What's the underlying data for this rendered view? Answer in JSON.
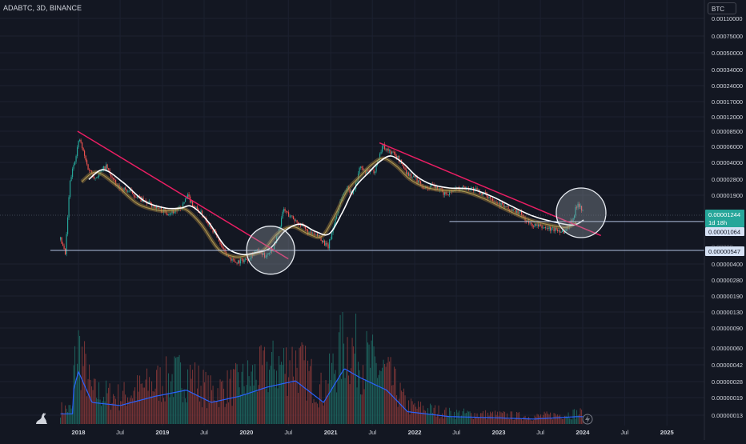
{
  "header": {
    "symbol": "ADABTC, 3D, BINANCE"
  },
  "scale_button": "BTC",
  "colors": {
    "background": "#131722",
    "trendline": "#e91e63",
    "moving_average": "#ffffff",
    "candle_up": "#26a69a",
    "candle_down": "#ef5350",
    "volume_ma": "#2962ff",
    "level_line": "#b2c1e0",
    "circle_fill": "#9aa3ad"
  },
  "price_labels": {
    "current": {
      "value": "0.00001244",
      "countdown": "1d 18h"
    },
    "level_upper": "0.00001064",
    "level_lower": "0.00000547",
    "hidden_partial": "0.00000"
  },
  "chart_data": {
    "type": "candlestick",
    "y_scale": "log",
    "y_ticks": [
      "0.00110000",
      "0.00075000",
      "0.00050000",
      "0.00034000",
      "0.00024000",
      "0.00017000",
      "0.00012000",
      "0.00008500",
      "0.00006000",
      "0.00004000",
      "0.00002800",
      "0.00001900",
      "0.00000400",
      "0.00000280",
      "0.00000190",
      "0.00000130",
      "0.00000090",
      "0.00000060",
      "0.00000042",
      "0.00000028",
      "0.00000019",
      "0.00000013"
    ],
    "x_ticks": [
      "2018",
      "Jul",
      "2019",
      "Jul",
      "2020",
      "Jul",
      "2021",
      "Jul",
      "2022",
      "Jul",
      "2023",
      "Jul",
      "2024",
      "Jul",
      "2025"
    ],
    "price_series": [
      {
        "date": "2017-10-15",
        "close": 7e-06
      },
      {
        "date": "2017-11-05",
        "close": 5e-06
      },
      {
        "date": "2017-11-25",
        "close": 2.6e-05
      },
      {
        "date": "2017-12-10",
        "close": 3.8e-05
      },
      {
        "date": "2018-01-05",
        "close": 7.2e-05
      },
      {
        "date": "2018-02-10",
        "close": 3.7e-05
      },
      {
        "date": "2018-03-15",
        "close": 2.9e-05
      },
      {
        "date": "2018-05-01",
        "close": 3.8e-05
      },
      {
        "date": "2018-06-15",
        "close": 2.4e-05
      },
      {
        "date": "2018-08-15",
        "close": 2.1e-05
      },
      {
        "date": "2018-10-10",
        "close": 1.7e-05
      },
      {
        "date": "2018-12-01",
        "close": 1.5e-05
      },
      {
        "date": "2019-01-20",
        "close": 1.3e-05
      },
      {
        "date": "2019-03-20",
        "close": 1.4e-05
      },
      {
        "date": "2019-04-20",
        "close": 1.9e-05
      },
      {
        "date": "2019-05-20",
        "close": 1.5e-05
      },
      {
        "date": "2019-07-01",
        "close": 1.2e-05
      },
      {
        "date": "2019-08-20",
        "close": 8e-06
      },
      {
        "date": "2019-10-01",
        "close": 5e-06
      },
      {
        "date": "2019-11-15",
        "close": 4.2e-06
      },
      {
        "date": "2020-01-05",
        "close": 4.5e-06
      },
      {
        "date": "2020-02-10",
        "close": 5.5e-06
      },
      {
        "date": "2020-03-20",
        "close": 4.8e-06
      },
      {
        "date": "2020-04-25",
        "close": 5.8e-06
      },
      {
        "date": "2020-05-20",
        "close": 8.5e-06
      },
      {
        "date": "2020-06-10",
        "close": 1.4e-05
      },
      {
        "date": "2020-07-10",
        "close": 1.2e-05
      },
      {
        "date": "2020-08-20",
        "close": 1e-05
      },
      {
        "date": "2020-10-01",
        "close": 8e-06
      },
      {
        "date": "2020-11-15",
        "close": 7.5e-06
      },
      {
        "date": "2020-12-20",
        "close": 5.8e-06
      },
      {
        "date": "2021-01-20",
        "close": 1.1e-05
      },
      {
        "date": "2021-02-15",
        "close": 1.8e-05
      },
      {
        "date": "2021-03-10",
        "close": 2.3e-05
      },
      {
        "date": "2021-04-10",
        "close": 2.1e-05
      },
      {
        "date": "2021-05-10",
        "close": 3.8e-05
      },
      {
        "date": "2021-05-25",
        "close": 3.3e-05
      },
      {
        "date": "2021-07-10",
        "close": 3.4e-05
      },
      {
        "date": "2021-08-15",
        "close": 6.2e-05
      },
      {
        "date": "2021-09-01",
        "close": 5.6e-05
      },
      {
        "date": "2021-10-15",
        "close": 4.8e-05
      },
      {
        "date": "2021-12-01",
        "close": 3.2e-05
      },
      {
        "date": "2022-01-01",
        "close": 2.9e-05
      },
      {
        "date": "2022-02-15",
        "close": 2.3e-05
      },
      {
        "date": "2022-03-20",
        "close": 2.4e-05
      },
      {
        "date": "2022-05-15",
        "close": 2e-05
      },
      {
        "date": "2022-07-01",
        "close": 2.3e-05
      },
      {
        "date": "2022-09-01",
        "close": 2.3e-05
      },
      {
        "date": "2022-11-01",
        "close": 2e-05
      },
      {
        "date": "2022-12-20",
        "close": 1.7e-05
      },
      {
        "date": "2023-02-15",
        "close": 1.4e-05
      },
      {
        "date": "2023-04-01",
        "close": 1.3e-05
      },
      {
        "date": "2023-05-15",
        "close": 1e-05
      },
      {
        "date": "2023-06-20",
        "close": 9.5e-06
      },
      {
        "date": "2023-08-15",
        "close": 9e-06
      },
      {
        "date": "2023-10-15",
        "close": 8.5e-06
      },
      {
        "date": "2023-11-20",
        "close": 1.15e-05
      },
      {
        "date": "2023-12-10",
        "close": 1.65e-05
      },
      {
        "date": "2023-12-25",
        "close": 1.5e-05
      },
      {
        "date": "2024-01-05",
        "close": 1.244e-05
      }
    ],
    "moving_average": [
      {
        "date": "2018-02-15",
        "value": 2.8e-05
      },
      {
        "date": "2018-04-20",
        "value": 3.5e-05
      },
      {
        "date": "2018-07-15",
        "value": 2.6e-05
      },
      {
        "date": "2018-10-15",
        "value": 1.7e-05
      },
      {
        "date": "2019-01-15",
        "value": 1.45e-05
      },
      {
        "date": "2019-03-20",
        "value": 1.45e-05
      },
      {
        "date": "2019-05-10",
        "value": 1.5e-05
      },
      {
        "date": "2019-07-20",
        "value": 1.05e-05
      },
      {
        "date": "2019-10-01",
        "value": 6e-06
      },
      {
        "date": "2019-12-10",
        "value": 5e-06
      },
      {
        "date": "2020-02-10",
        "value": 5.2e-06
      },
      {
        "date": "2020-04-15",
        "value": 5.8e-06
      },
      {
        "date": "2020-06-15",
        "value": 8.5e-06
      },
      {
        "date": "2020-08-20",
        "value": 1e-05
      },
      {
        "date": "2020-10-25",
        "value": 8.5e-06
      },
      {
        "date": "2020-12-25",
        "value": 8e-06
      },
      {
        "date": "2021-02-20",
        "value": 1.3e-05
      },
      {
        "date": "2021-04-15",
        "value": 2.3e-05
      },
      {
        "date": "2021-06-10",
        "value": 3.2e-05
      },
      {
        "date": "2021-08-01",
        "value": 4.2e-05
      },
      {
        "date": "2021-09-20",
        "value": 4.8e-05
      },
      {
        "date": "2021-11-15",
        "value": 4e-05
      },
      {
        "date": "2022-01-10",
        "value": 3e-05
      },
      {
        "date": "2022-03-15",
        "value": 2.5e-05
      },
      {
        "date": "2022-06-01",
        "value": 2.3e-05
      },
      {
        "date": "2022-09-01",
        "value": 2.25e-05
      },
      {
        "date": "2022-12-01",
        "value": 1.9e-05
      },
      {
        "date": "2023-03-01",
        "value": 1.5e-05
      },
      {
        "date": "2023-06-01",
        "value": 1.2e-05
      },
      {
        "date": "2023-09-01",
        "value": 1.05e-05
      },
      {
        "date": "2023-11-20",
        "value": 9.8e-06
      },
      {
        "date": "2024-01-05",
        "value": 1.1e-05
      }
    ],
    "trendlines": [
      {
        "from": {
          "date": "2017-12-28",
          "price": 8.5e-05
        },
        "to": {
          "date": "2020-07-01",
          "price": 4.5e-06
        }
      },
      {
        "from": {
          "date": "2021-08-01",
          "price": 6.5e-05
        },
        "to": {
          "date": "2024-03-20",
          "price": 7.7e-06
        }
      }
    ],
    "horizontal_levels": [
      {
        "price": 1.064e-05,
        "from_date": "2022-06-01"
      },
      {
        "price": 5.47e-06,
        "from_date": "2017-09-01"
      }
    ],
    "highlight_circles": [
      {
        "date": "2020-04-15",
        "price": 5.5e-06
      },
      {
        "date": "2023-12-25",
        "price": 1.3e-05
      }
    ],
    "volume": {
      "series": [
        {
          "date": "2017-12-10",
          "value": 0.55
        },
        {
          "date": "2018-01-01",
          "value": 0.85
        },
        {
          "date": "2018-03-01",
          "value": 0.35
        },
        {
          "date": "2018-07-01",
          "value": 0.3
        },
        {
          "date": "2018-12-01",
          "value": 0.45
        },
        {
          "date": "2019-04-15",
          "value": 0.55
        },
        {
          "date": "2019-08-01",
          "value": 0.35
        },
        {
          "date": "2019-12-01",
          "value": 0.45
        },
        {
          "date": "2020-04-01",
          "value": 0.6
        },
        {
          "date": "2020-08-01",
          "value": 0.7
        },
        {
          "date": "2020-12-01",
          "value": 0.35
        },
        {
          "date": "2021-03-01",
          "value": 0.9
        },
        {
          "date": "2021-05-10",
          "value": 0.75
        },
        {
          "date": "2021-09-01",
          "value": 0.55
        },
        {
          "date": "2021-12-01",
          "value": 0.2
        },
        {
          "date": "2022-06-01",
          "value": 0.12
        },
        {
          "date": "2023-01-01",
          "value": 0.1
        },
        {
          "date": "2023-06-01",
          "value": 0.08
        },
        {
          "date": "2023-12-10",
          "value": 0.12
        }
      ]
    }
  }
}
